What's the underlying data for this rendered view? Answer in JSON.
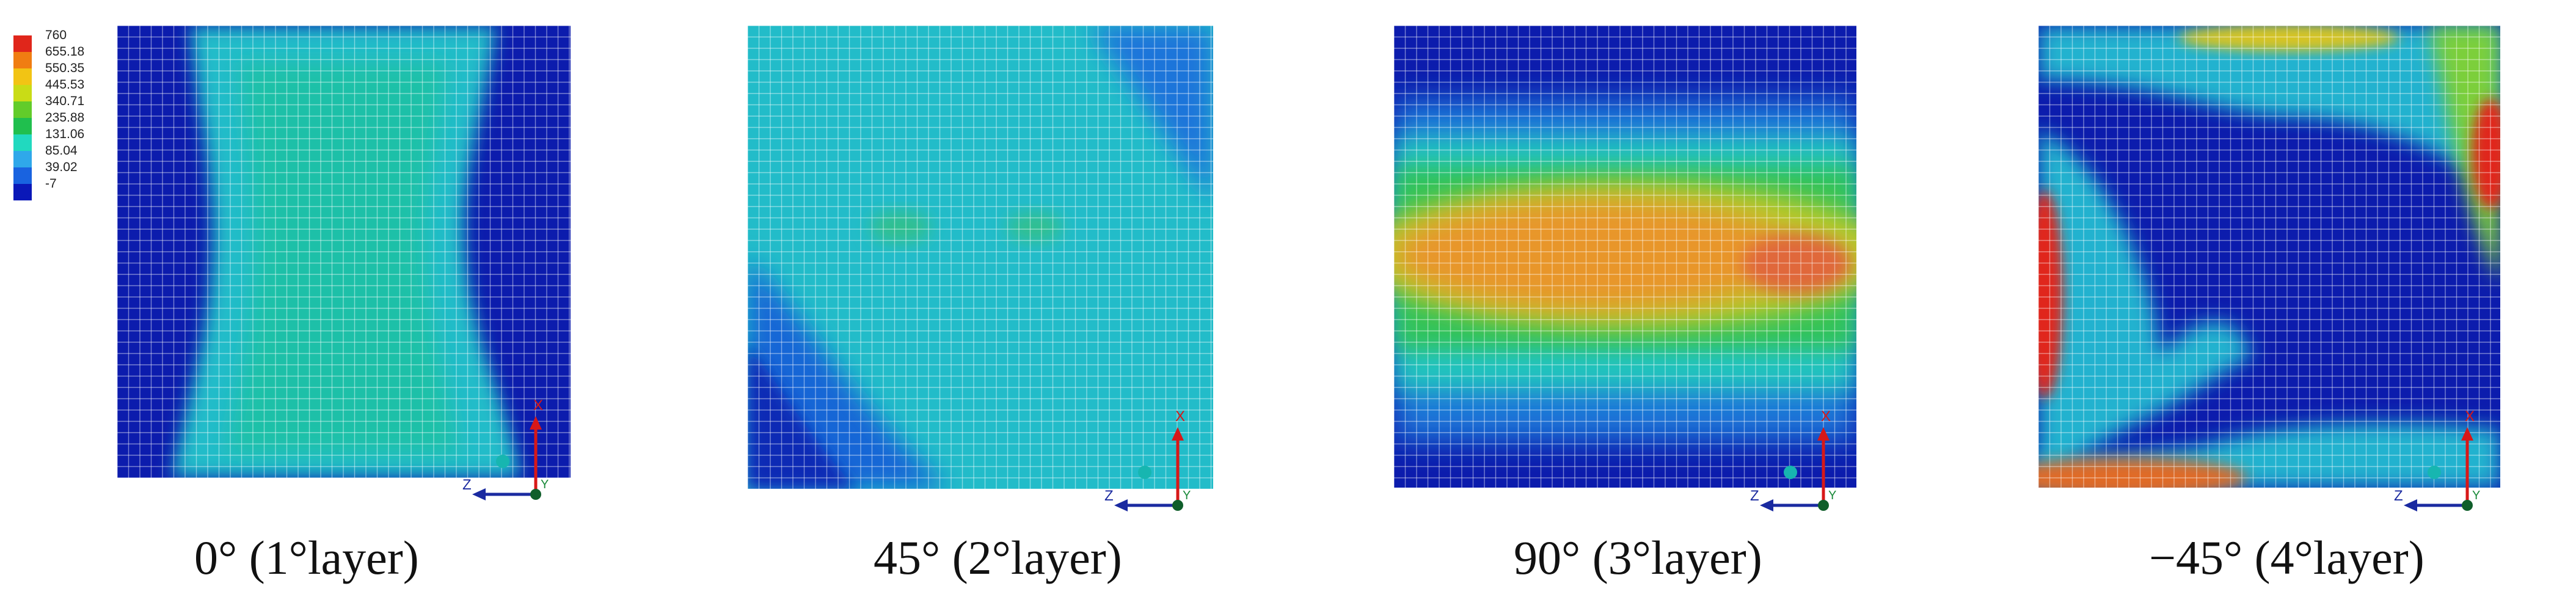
{
  "legend": {
    "values": [
      "760",
      "655.18",
      "550.35",
      "445.53",
      "340.71",
      "235.88",
      "131.06",
      "85.04",
      "39.02",
      "-7"
    ],
    "colors": [
      "#e0261b",
      "#f07d12",
      "#f2c414",
      "#c9dc16",
      "#62cc2a",
      "#20bf4e",
      "#21d9bf",
      "#2fa8ea",
      "#1963e0",
      "#0a18b8"
    ]
  },
  "axes": {
    "x_label": "X",
    "z_label": "Z",
    "y_label": "Y"
  },
  "panels": [
    {
      "caption": "0° (1°layer)"
    },
    {
      "caption": "45° (2°layer)"
    },
    {
      "caption": "90° (3°layer)"
    },
    {
      "caption": "−45° (4°layer)"
    }
  ]
}
